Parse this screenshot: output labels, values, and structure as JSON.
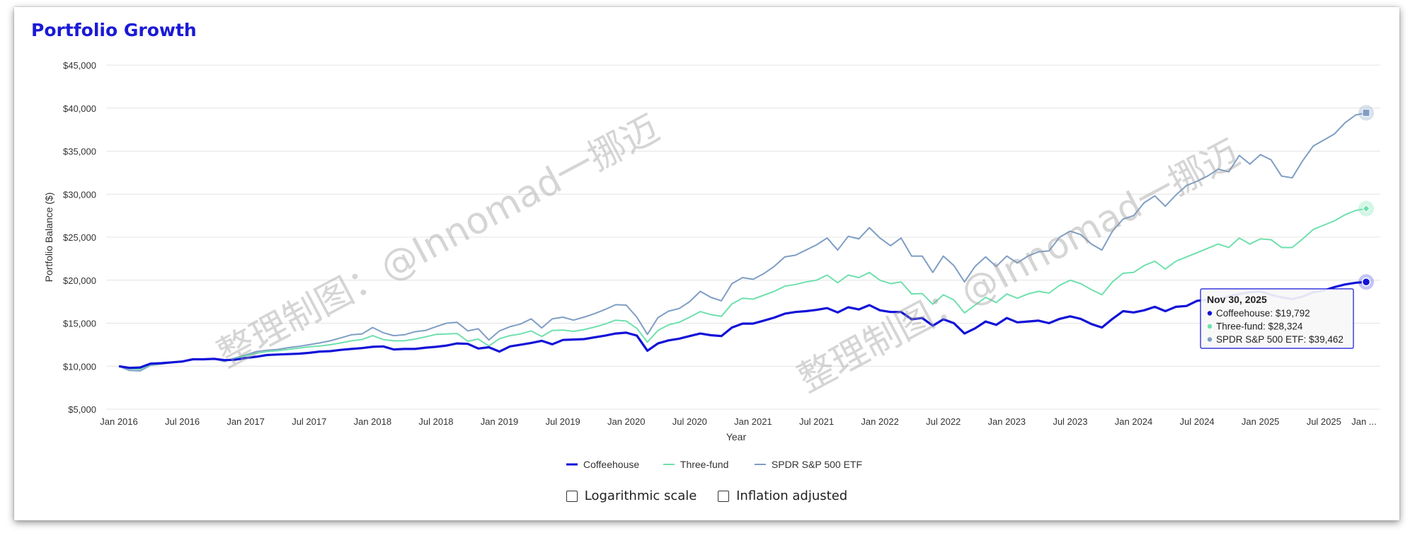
{
  "title": "Portfolio Growth",
  "watermark": "整理制图：@Innomad一挪迈",
  "controls": {
    "log_label": "Logarithmic scale",
    "inflation_label": "Inflation adjusted",
    "log_checked": false,
    "inflation_checked": false
  },
  "tooltip": {
    "date": "Nov 30, 2025",
    "lines": [
      "Coffeehouse: $19,792",
      "Three-fund: $28,324",
      "SPDR S&P 500 ETF: $39,462"
    ]
  },
  "chart_data": {
    "type": "line",
    "xlabel": "Year",
    "ylabel": "Portfolio Balance ($)",
    "ylim": [
      5000,
      45000
    ],
    "y_ticks": [
      "$5,000",
      "$10,000",
      "$15,000",
      "$20,000",
      "$25,000",
      "$30,000",
      "$35,000",
      "$40,000",
      "$45,000"
    ],
    "x_ticks": [
      "Jan 2016",
      "Jul 2016",
      "Jan 2017",
      "Jul 2017",
      "Jan 2018",
      "Jul 2018",
      "Jan 2019",
      "Jul 2019",
      "Jan 2020",
      "Jul 2020",
      "Jan 2021",
      "Jul 2021",
      "Jan 2022",
      "Jul 2022",
      "Jan 2023",
      "Jul 2023",
      "Jan 2024",
      "Jul 2024",
      "Jan 2025",
      "Jul 2025",
      "Jan ..."
    ],
    "x_start": "Jan 2016",
    "x_end": "Nov 2025",
    "grid": true,
    "legend_position": "bottom",
    "series": [
      {
        "name": "Coffeehouse",
        "color": "#1212d8",
        "values": [
          10000,
          9800,
          9850,
          10300,
          10350,
          10450,
          10550,
          10800,
          10800,
          10850,
          10700,
          10750,
          10950,
          11100,
          11300,
          11350,
          11400,
          11450,
          11550,
          11700,
          11750,
          11900,
          12000,
          12100,
          12250,
          12300,
          11950,
          12000,
          12000,
          12150,
          12250,
          12400,
          12650,
          12600,
          12050,
          12200,
          11700,
          12300,
          12500,
          12700,
          12950,
          12550,
          13050,
          13100,
          13150,
          13350,
          13550,
          13800,
          13900,
          13550,
          11800,
          12650,
          13000,
          13200,
          13500,
          13800,
          13600,
          13500,
          14500,
          14950,
          14950,
          15300,
          15650,
          16100,
          16300,
          16400,
          16550,
          16750,
          16250,
          16850,
          16600,
          17100,
          16500,
          16300,
          16300,
          15450,
          15600,
          14700,
          15450,
          15000,
          13800,
          14400,
          15200,
          14800,
          15600,
          15100,
          15200,
          15300,
          15000,
          15500,
          15800,
          15500,
          14900,
          14500,
          15500,
          16400,
          16250,
          16500,
          16900,
          16400,
          16900,
          17000,
          17600,
          17700,
          17800,
          18100,
          18400,
          18600,
          18700,
          18300,
          18000,
          17800,
          18100,
          18600,
          18800,
          19200,
          19500,
          19700,
          19792
        ]
      },
      {
        "name": "Three-fund",
        "color": "#6fe0ad",
        "values": [
          10000,
          9700,
          9650,
          10200,
          10300,
          10450,
          10550,
          10800,
          10750,
          10850,
          10650,
          10850,
          11200,
          11500,
          11700,
          11800,
          11950,
          12100,
          12250,
          12350,
          12500,
          12700,
          12950,
          13100,
          13550,
          13100,
          12950,
          12950,
          13150,
          13400,
          13700,
          13750,
          13800,
          12900,
          13150,
          12350,
          13200,
          13550,
          13750,
          14100,
          13450,
          14150,
          14200,
          14050,
          14250,
          14550,
          14900,
          15350,
          15250,
          14400,
          12800,
          14150,
          14800,
          15100,
          15700,
          16350,
          16000,
          15800,
          17250,
          17900,
          17800,
          18250,
          18700,
          19300,
          19500,
          19800,
          20000,
          20600,
          19700,
          20600,
          20300,
          20900,
          20000,
          19600,
          19800,
          18400,
          18450,
          17200,
          18300,
          17700,
          16200,
          17100,
          18000,
          17400,
          18400,
          17900,
          18400,
          18700,
          18500,
          19400,
          20000,
          19600,
          18900,
          18300,
          19800,
          20800,
          20900,
          21700,
          22200,
          21300,
          22200,
          22700,
          23200,
          23700,
          24200,
          23800,
          24900,
          24200,
          24800,
          24700,
          23800,
          23800,
          24800,
          25900,
          26400,
          26900,
          27600,
          28100,
          28324
        ]
      },
      {
        "name": "SPDR S&P 500 ETF",
        "color": "#7f9ec4",
        "values": [
          10000,
          9500,
          9450,
          10100,
          10250,
          10400,
          10500,
          10800,
          10750,
          10850,
          10550,
          10950,
          11300,
          11700,
          11850,
          11950,
          12150,
          12300,
          12500,
          12700,
          12950,
          13300,
          13650,
          13750,
          14500,
          13900,
          13550,
          13650,
          14000,
          14150,
          14600,
          15000,
          15100,
          14100,
          14350,
          13050,
          14100,
          14600,
          14900,
          15500,
          14450,
          15500,
          15700,
          15350,
          15700,
          16100,
          16600,
          17150,
          17100,
          15700,
          13700,
          15650,
          16400,
          16700,
          17500,
          18700,
          18000,
          17600,
          19600,
          20300,
          20100,
          20750,
          21600,
          22700,
          22900,
          23500,
          24100,
          24900,
          23500,
          25100,
          24800,
          26100,
          24900,
          24000,
          24900,
          22800,
          22800,
          20900,
          22800,
          21700,
          19800,
          21600,
          22700,
          21600,
          22800,
          22000,
          22800,
          23300,
          23400,
          25000,
          25700,
          25300,
          24200,
          23500,
          25700,
          27100,
          27500,
          29000,
          29800,
          28600,
          29900,
          31000,
          31500,
          32100,
          32900,
          32600,
          34500,
          33500,
          34600,
          34000,
          32100,
          31900,
          33900,
          35600,
          36300,
          37000,
          38300,
          39200,
          39462
        ]
      }
    ]
  }
}
